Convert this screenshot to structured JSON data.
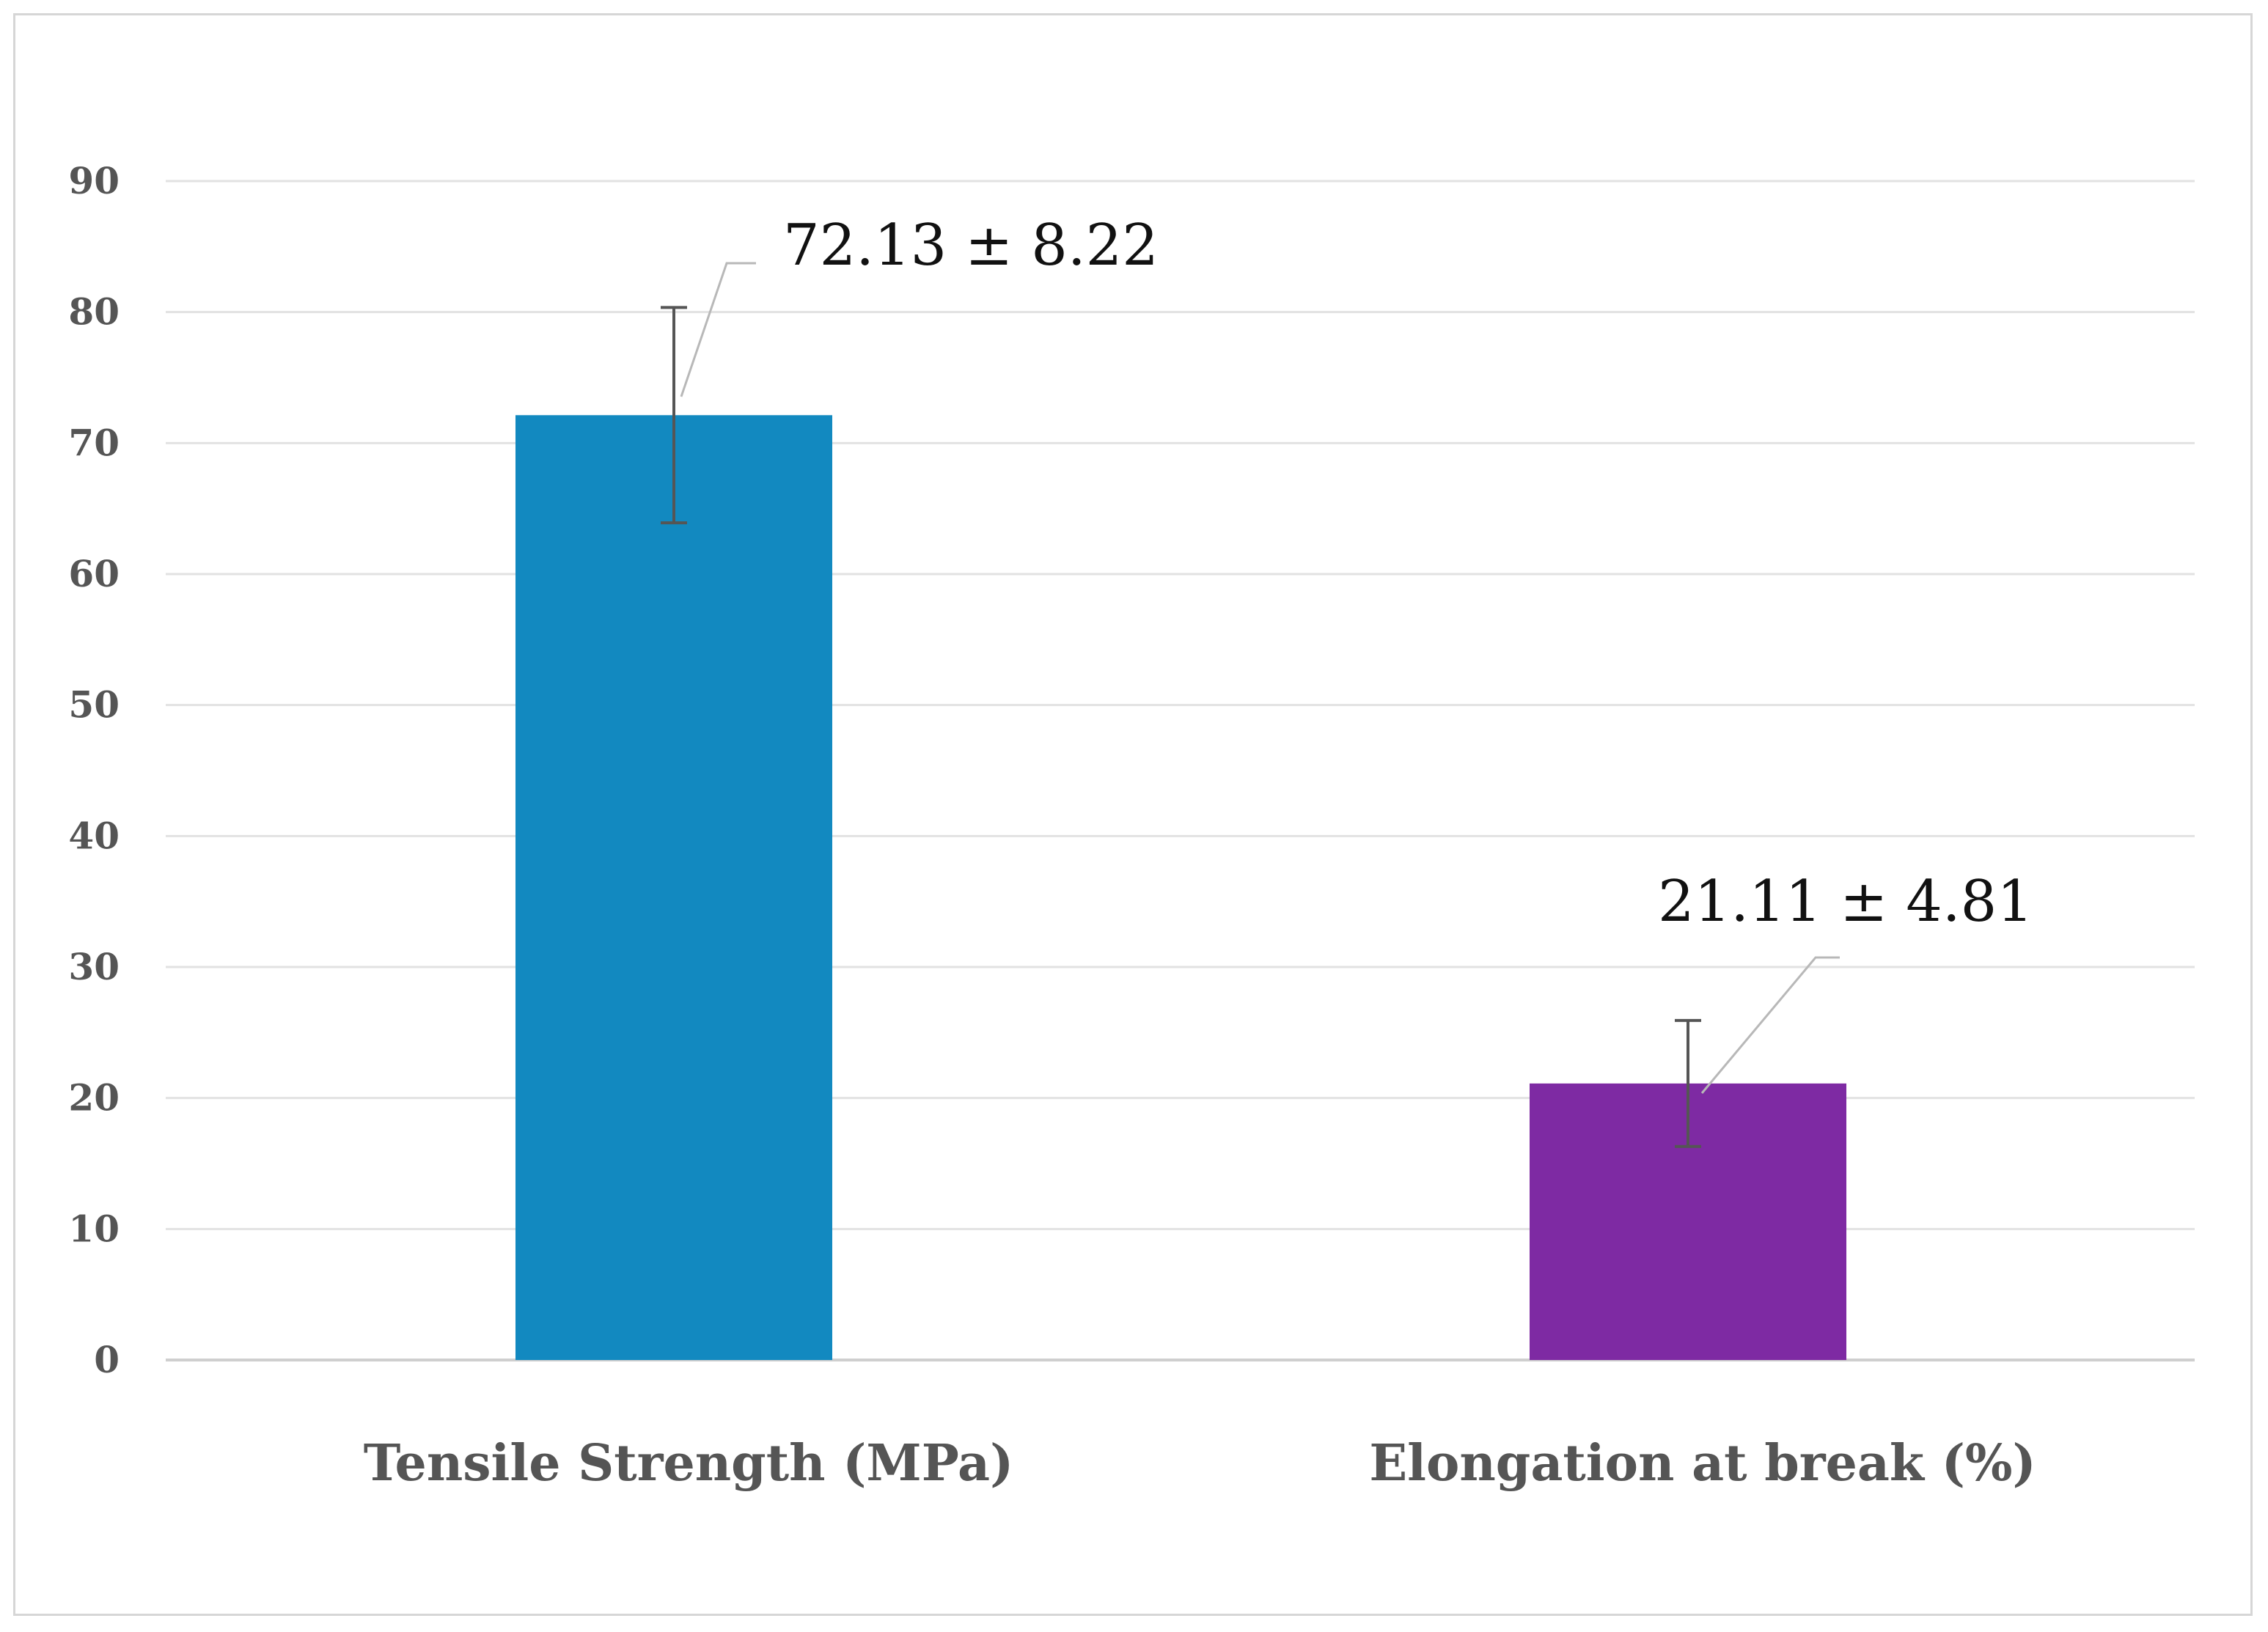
{
  "chart_data": {
    "type": "bar",
    "title": "",
    "xlabel": "",
    "ylabel": "",
    "categories": [
      "Tensile Strength (MPa)",
      "Elongation at break (%)"
    ],
    "values": [
      72.13,
      21.11
    ],
    "errors": [
      8.22,
      4.81
    ],
    "data_labels": [
      "72.13 ± 8.22",
      "21.11 ± 4.81"
    ],
    "bar_colors": [
      "#1289C0",
      "#7E2AA3"
    ],
    "error_bar_color": "#555555",
    "ylim": [
      0,
      90
    ],
    "yticks": [
      "0",
      "10",
      "20",
      "30",
      "40",
      "50",
      "60",
      "70",
      "80",
      "90"
    ],
    "grid": true,
    "legend": "none"
  }
}
